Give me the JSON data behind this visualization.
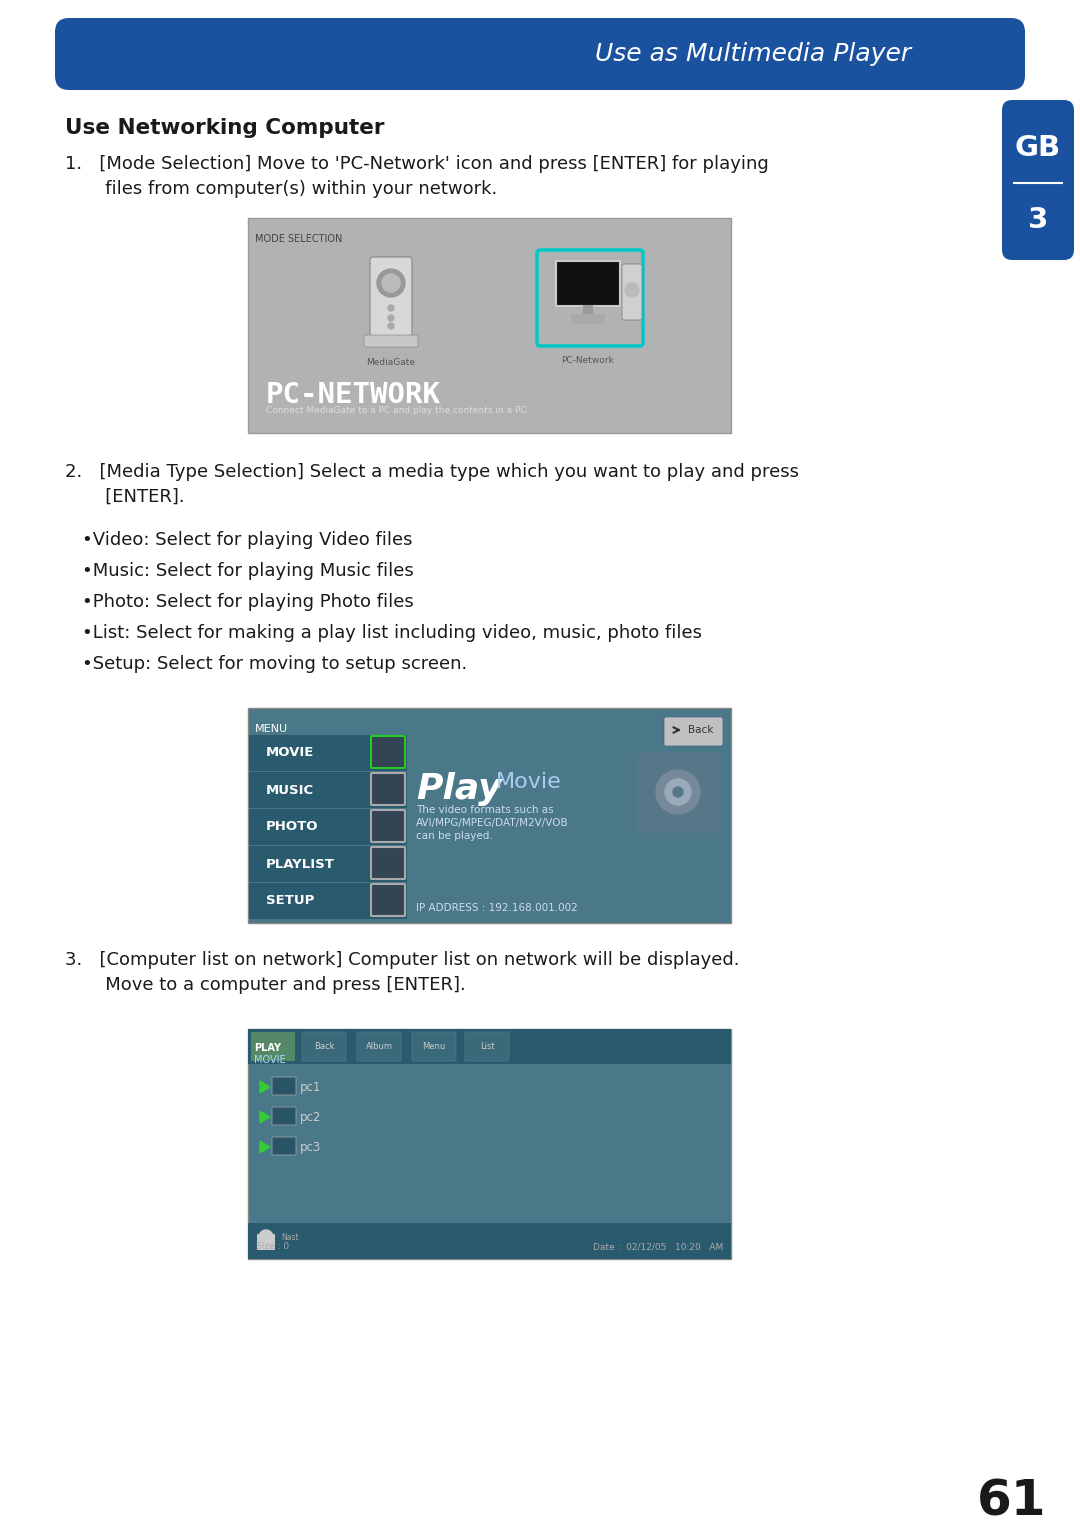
{
  "header_color": "#1a52a0",
  "header_text": "Use as Multimedia Player",
  "header_text_color": "#ffffff",
  "tab_color": "#1a52a0",
  "tab_text_gb": "GB",
  "tab_text_num": "3",
  "tab_text_color": "#ffffff",
  "section_title": "Use Networking Computer",
  "body_bg": "#ffffff",
  "text_color": "#1a1a1a",
  "bullet_items": [
    "•Video: Select for playing Video files",
    "•Music: Select for playing Music files",
    "•Photo: Select for playing Photo files",
    "•List: Select for making a play list including video, music, photo files",
    "•Setup: Select for moving to setup screen."
  ],
  "page_number": "61",
  "menu_items": [
    "MOVIE",
    "MUSIC",
    "PHOTO",
    "PLAYLIST",
    "SETUP"
  ]
}
